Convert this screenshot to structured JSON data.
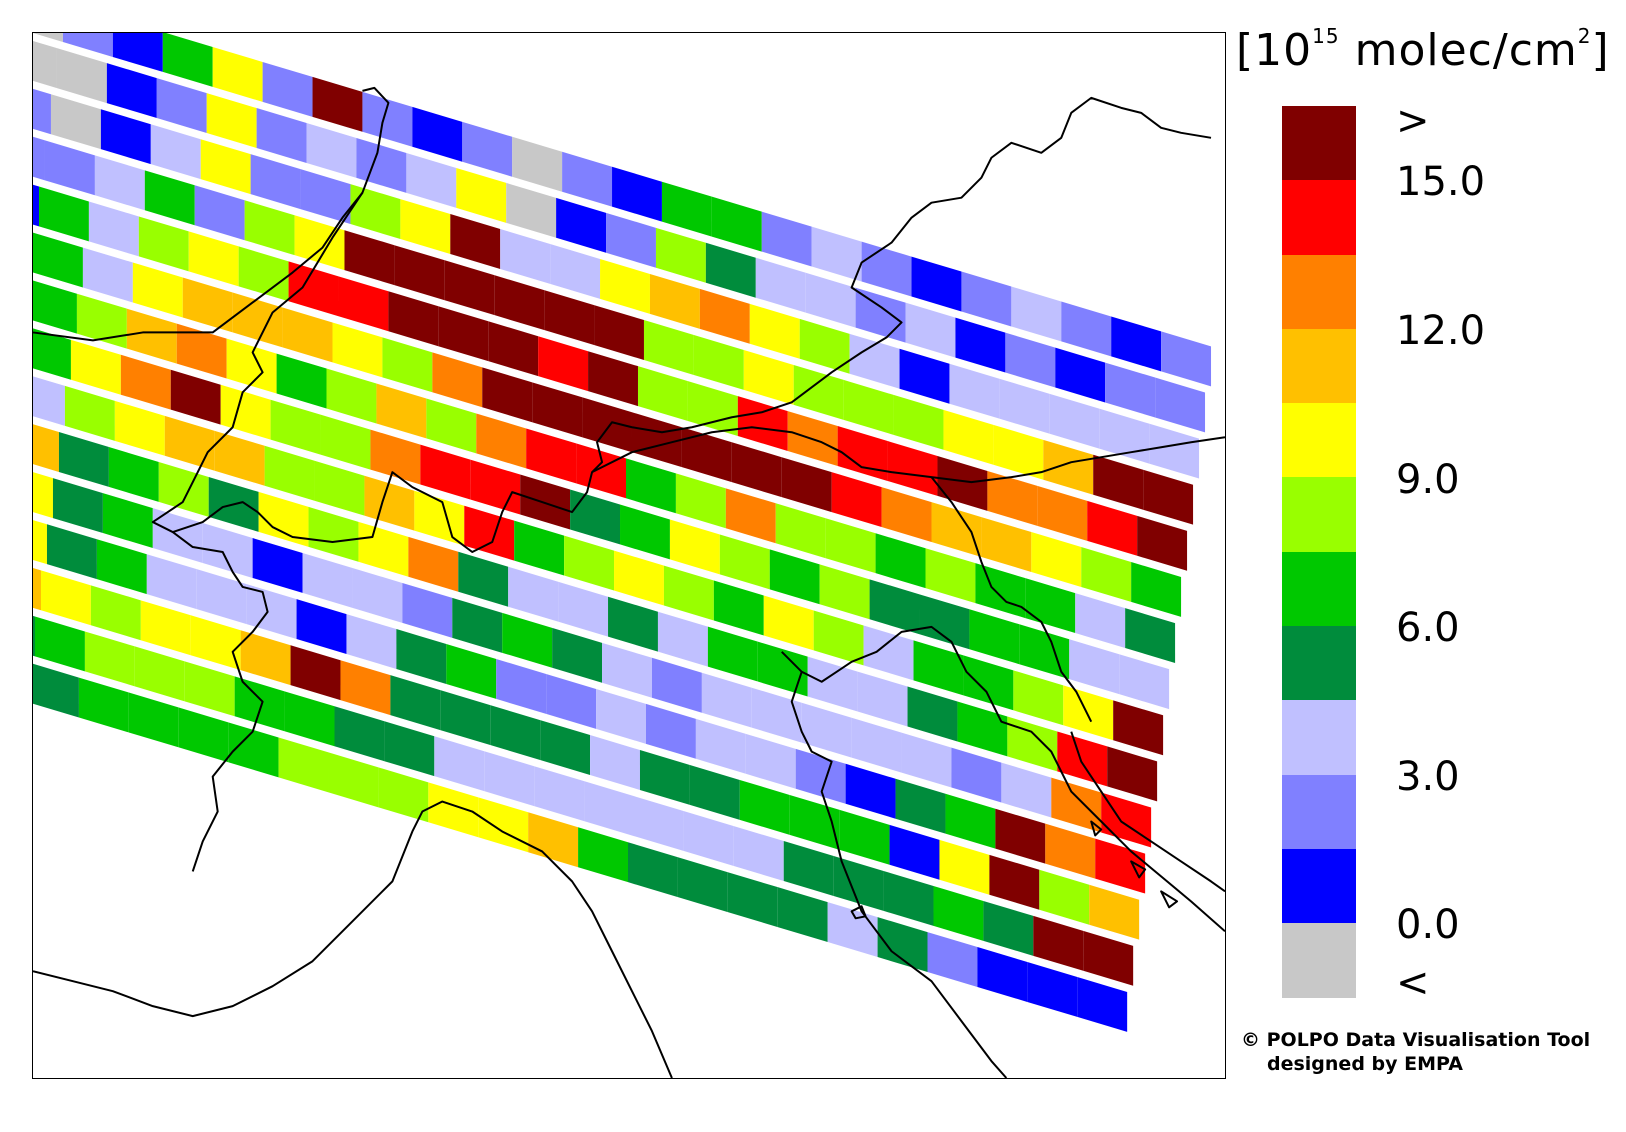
{
  "units": {
    "prefix": "[10",
    "exponent": "15",
    "middle": " molec/cm",
    "power": "2",
    "suffix": "]"
  },
  "colorbar": {
    "colors": [
      "#800000",
      "#ff0000",
      "#ff8000",
      "#ffc000",
      "#ffff00",
      "#99ff00",
      "#00c800",
      "#008c3c",
      "#c0c0ff",
      "#8080ff",
      "#0000ff",
      "#c8c8c8"
    ],
    "labels": [
      ">",
      "15.0",
      "12.0",
      "9.0",
      "6.0",
      "3.0",
      "0.0",
      "<"
    ],
    "ticks": [
      ">",
      15.0,
      12.0,
      9.0,
      6.0,
      3.0,
      0.0,
      "<"
    ]
  },
  "credit": {
    "symbol": "©",
    "line1": "POLPO Data Visualisation Tool",
    "line2": "designed by EMPA"
  },
  "map": {
    "region": "Northern Italy / Alps",
    "overlay": "satellite swaths of column density",
    "colors": {
      "border": "#000000",
      "background": "#ffffff"
    },
    "swath_rows": [
      [
        11,
        9,
        10,
        6,
        4,
        9,
        0,
        9,
        10,
        9,
        11,
        9,
        10,
        6,
        6,
        9,
        8,
        9,
        10,
        9,
        8,
        9,
        10,
        9
      ],
      [
        11,
        11,
        10,
        9,
        4,
        9,
        8,
        9,
        8,
        4,
        11,
        10,
        9,
        5,
        7,
        8,
        8,
        9,
        8,
        10,
        9,
        10,
        9,
        9
      ],
      [
        9,
        11,
        10,
        8,
        4,
        9,
        9,
        5,
        4,
        0,
        8,
        8,
        4,
        3,
        2,
        4,
        5,
        8,
        10,
        8,
        8,
        8,
        8,
        8
      ],
      [
        9,
        9,
        8,
        6,
        9,
        5,
        4,
        0,
        0,
        0,
        0,
        0,
        0,
        5,
        5,
        4,
        5,
        5,
        5,
        4,
        4,
        3,
        0,
        0
      ],
      [
        10,
        6,
        8,
        5,
        4,
        5,
        1,
        1,
        0,
        0,
        0,
        1,
        0,
        5,
        5,
        1,
        2,
        1,
        1,
        0,
        2,
        2,
        1,
        0
      ],
      [
        8,
        6,
        8,
        4,
        3,
        3,
        3,
        4,
        5,
        2,
        0,
        0,
        0,
        0,
        0,
        0,
        0,
        1,
        2,
        3,
        3,
        4,
        5,
        6
      ],
      [
        9,
        6,
        5,
        3,
        2,
        4,
        6,
        5,
        3,
        5,
        2,
        1,
        1,
        6,
        5,
        2,
        5,
        5,
        6,
        5,
        6,
        6,
        8,
        7
      ],
      [
        9,
        6,
        4,
        2,
        0,
        4,
        5,
        5,
        2,
        1,
        1,
        0,
        7,
        6,
        4,
        5,
        6,
        5,
        7,
        7,
        6,
        6,
        8,
        8
      ],
      [
        8,
        8,
        5,
        4,
        3,
        3,
        5,
        5,
        3,
        4,
        1,
        6,
        5,
        4,
        5,
        6,
        4,
        5,
        8,
        6,
        6,
        5,
        4,
        0
      ],
      [
        6,
        3,
        7,
        6,
        5,
        7,
        4,
        5,
        4,
        2,
        7,
        8,
        8,
        7,
        8,
        6,
        6,
        8,
        8,
        7,
        6,
        5,
        1,
        0
      ],
      [
        7,
        4,
        7,
        6,
        8,
        8,
        10,
        8,
        8,
        9,
        7,
        6,
        7,
        8,
        9,
        8,
        8,
        8,
        8,
        8,
        9,
        8,
        2,
        1
      ],
      [
        7,
        4,
        7,
        6,
        8,
        8,
        8,
        10,
        8,
        7,
        6,
        9,
        9,
        8,
        9,
        8,
        8,
        9,
        10,
        7,
        6,
        0,
        2,
        1
      ],
      [
        6,
        3,
        4,
        5,
        4,
        4,
        3,
        0,
        2,
        7,
        7,
        7,
        7,
        8,
        7,
        7,
        6,
        6,
        6,
        10,
        4,
        0,
        5,
        3
      ],
      [
        7,
        7,
        6,
        5,
        5,
        5,
        6,
        6,
        7,
        7,
        8,
        8,
        8,
        8,
        8,
        8,
        8,
        7,
        7,
        7,
        6,
        7,
        0,
        0
      ],
      [
        8,
        7,
        7,
        6,
        6,
        6,
        6,
        5,
        5,
        5,
        4,
        4,
        3,
        6,
        7,
        7,
        7,
        7,
        8,
        7,
        9,
        10,
        10,
        10
      ]
    ]
  }
}
